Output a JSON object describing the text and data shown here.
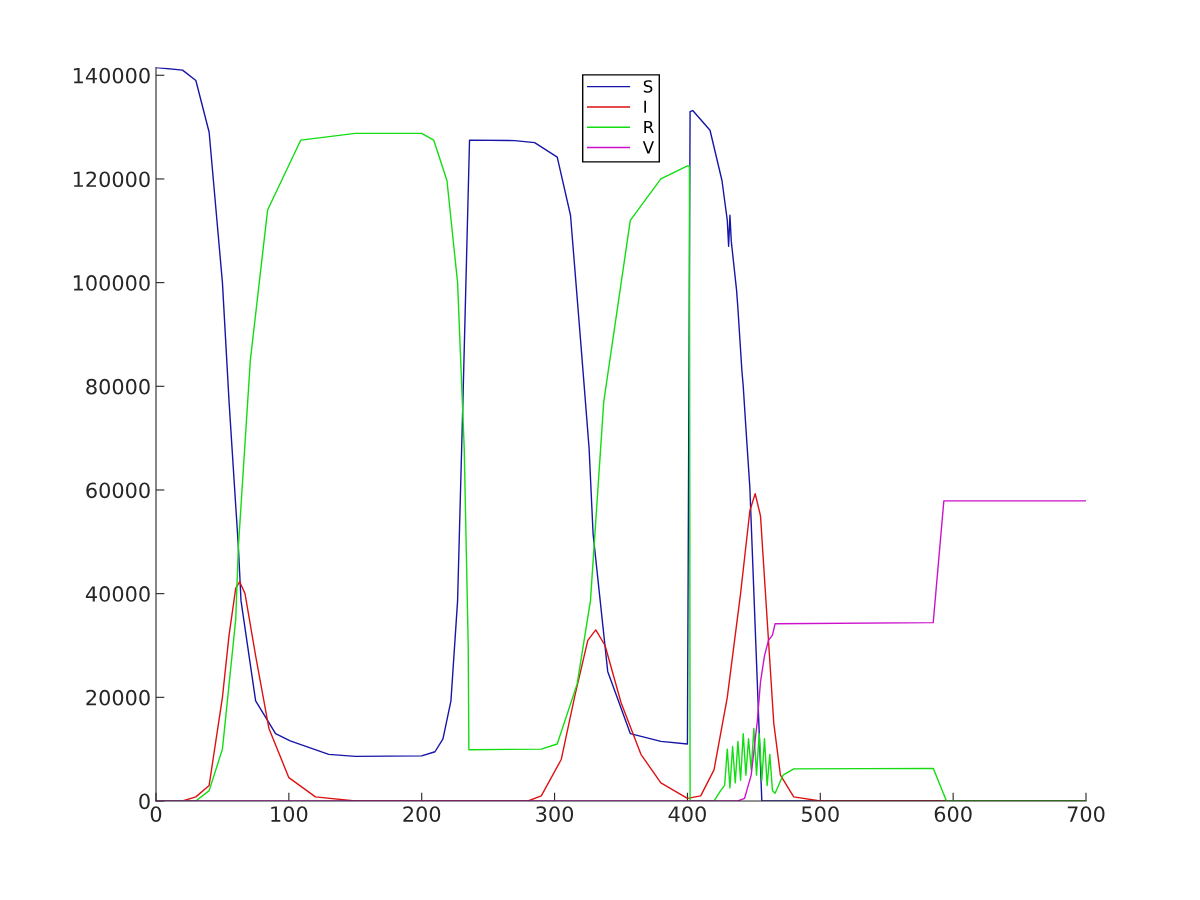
{
  "chart_data": {
    "type": "line",
    "xlim": [
      0,
      700
    ],
    "ylim": [
      0,
      141500
    ],
    "xticks": [
      0,
      100,
      200,
      300,
      400,
      500,
      600,
      700
    ],
    "yticks": [
      0,
      20000,
      40000,
      60000,
      80000,
      100000,
      120000,
      140000
    ],
    "grid": false,
    "legend": "top",
    "marker": "none",
    "line_style": "solid",
    "series": [
      {
        "name": "S",
        "color": "#1515a8",
        "x": [
          0,
          20,
          30,
          40,
          50,
          55,
          62,
          64,
          75,
          90,
          101,
          130,
          150,
          200,
          210,
          216,
          222,
          227,
          231,
          236,
          270,
          285,
          302,
          312,
          320,
          326,
          329,
          340,
          357,
          380,
          400,
          402,
          404,
          417,
          426,
          430,
          431,
          432,
          433,
          437,
          438,
          441,
          442,
          444,
          447,
          456,
          700
        ],
        "values": [
          141500,
          141000,
          139000,
          129000,
          100000,
          77000,
          49000,
          38600,
          19300,
          13000,
          11600,
          9000,
          8600,
          8700,
          9500,
          12000,
          19300,
          38600,
          77000,
          127500,
          127400,
          127000,
          124200,
          113000,
          87500,
          68000,
          51500,
          25000,
          13000,
          11500,
          11000,
          133000,
          133200,
          129400,
          119700,
          112000,
          107000,
          113000,
          108000,
          98500,
          95000,
          83000,
          80000,
          72000,
          60400,
          0,
          0
        ]
      },
      {
        "name": "I",
        "color": "#dd1111",
        "x": [
          0,
          20,
          30,
          40,
          50,
          55,
          60,
          63,
          67,
          75,
          85,
          100,
          120,
          150,
          280,
          290,
          305,
          315,
          325,
          331,
          338,
          350,
          365,
          380,
          400,
          410,
          420,
          430,
          440,
          447,
          451,
          455,
          460,
          465,
          470,
          480,
          500,
          700
        ],
        "values": [
          0,
          0,
          800,
          3000,
          20000,
          32000,
          41000,
          42300,
          40000,
          28000,
          14000,
          4500,
          800,
          0,
          0,
          1000,
          8000,
          20000,
          31000,
          33000,
          30000,
          19000,
          9000,
          3500,
          500,
          1000,
          6000,
          20000,
          40000,
          56000,
          59300,
          55000,
          35000,
          15000,
          5000,
          800,
          0,
          0
        ]
      },
      {
        "name": "R",
        "color": "#11dd11",
        "x": [
          0,
          30,
          40,
          50,
          60,
          62,
          71,
          84,
          109,
          150,
          200,
          209,
          219,
          227,
          232,
          235,
          235.5,
          290,
          302,
          317,
          327,
          337,
          357,
          380,
          400,
          401.5,
          402,
          420,
          425,
          428,
          430,
          432,
          434,
          436,
          438,
          440,
          442,
          444,
          446,
          448,
          450,
          452,
          454,
          456,
          458,
          460,
          462,
          464,
          466,
          472,
          480,
          585,
          595,
          700
        ],
        "values": [
          0,
          0,
          2000,
          10000,
          35000,
          49000,
          85000,
          114000,
          127500,
          128800,
          128800,
          127500,
          119700,
          100000,
          68000,
          30000,
          9900,
          10000,
          11000,
          22600,
          38600,
          77000,
          112000,
          120000,
          122500,
          122500,
          0,
          0,
          2000,
          3000,
          10000,
          2500,
          10500,
          3500,
          11500,
          4000,
          13000,
          5000,
          12000,
          6000,
          14000,
          5000,
          13000,
          4000,
          12000,
          3000,
          9000,
          2000,
          1500,
          5000,
          6200,
          6300,
          0,
          0
        ]
      },
      {
        "name": "V",
        "color": "#cc11cc",
        "x": [
          0,
          438,
          443,
          448,
          452.6,
          455,
          458,
          461,
          464,
          466,
          585,
          593,
          700
        ],
        "values": [
          0,
          0,
          500,
          5000,
          15400,
          23000,
          28000,
          31000,
          32000,
          34200,
          34400,
          57900,
          57900
        ]
      }
    ]
  }
}
